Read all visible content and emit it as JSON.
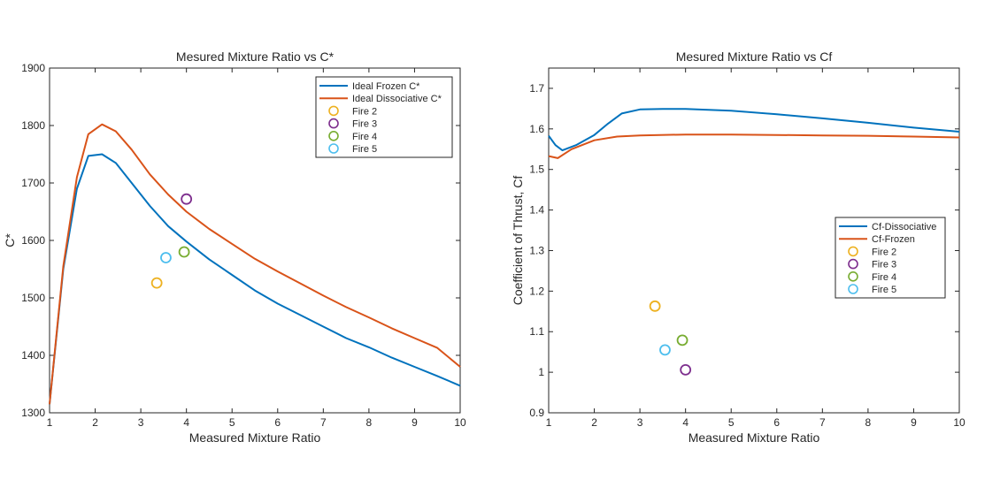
{
  "chart_data": [
    {
      "type": "line",
      "title": "Mesured Mixture Ratio vs C*",
      "xlabel": "Measured Mixture Ratio",
      "ylabel": "C*",
      "xlim": [
        1,
        10
      ],
      "ylim": [
        1300,
        1900
      ],
      "xticks": [
        1,
        2,
        3,
        4,
        5,
        6,
        7,
        8,
        9,
        10
      ],
      "yticks": [
        1300,
        1400,
        1500,
        1600,
        1700,
        1800,
        1900
      ],
      "grid": false,
      "legend_position": "top-right",
      "series": [
        {
          "name": "Ideal Frozen C*",
          "kind": "line",
          "color": "#0072BD",
          "x": [
            1.0,
            1.3,
            1.6,
            1.85,
            2.15,
            2.45,
            2.8,
            3.2,
            3.6,
            4.0,
            4.5,
            5.0,
            5.5,
            6.0,
            6.5,
            7.0,
            7.5,
            8.0,
            8.5,
            9.0,
            9.5,
            10.0
          ],
          "y": [
            1315,
            1550,
            1690,
            1747,
            1750,
            1735,
            1700,
            1660,
            1625,
            1598,
            1567,
            1540,
            1513,
            1490,
            1470,
            1450,
            1430,
            1414,
            1396,
            1380,
            1364,
            1347
          ]
        },
        {
          "name": "Ideal Dissociative C*",
          "kind": "line",
          "color": "#D95319",
          "x": [
            1.0,
            1.3,
            1.6,
            1.85,
            2.15,
            2.45,
            2.8,
            3.2,
            3.6,
            4.0,
            4.5,
            5.0,
            5.5,
            6.0,
            6.5,
            7.0,
            7.5,
            8.0,
            8.5,
            9.0,
            9.5,
            10.0
          ],
          "y": [
            1315,
            1555,
            1710,
            1785,
            1802,
            1790,
            1758,
            1715,
            1680,
            1650,
            1620,
            1594,
            1568,
            1546,
            1525,
            1504,
            1484,
            1466,
            1447,
            1430,
            1413,
            1380
          ]
        },
        {
          "name": "Fire 2",
          "kind": "marker",
          "color": "#EDB120",
          "x": [
            3.35
          ],
          "y": [
            1526
          ]
        },
        {
          "name": "Fire 3",
          "kind": "marker",
          "color": "#7E2F8E",
          "x": [
            4.0
          ],
          "y": [
            1672
          ]
        },
        {
          "name": "Fire 4",
          "kind": "marker",
          "color": "#77AC30",
          "x": [
            3.95
          ],
          "y": [
            1580
          ]
        },
        {
          "name": "Fire 5",
          "kind": "marker",
          "color": "#4DBEEE",
          "x": [
            3.55
          ],
          "y": [
            1570
          ]
        }
      ]
    },
    {
      "type": "line",
      "title": "Mesured Mixture Ratio vs Cf",
      "xlabel": "Measured Mixture Ratio",
      "ylabel": "Coefficient of Thrust, Cf",
      "xlim": [
        1,
        10
      ],
      "ylim": [
        0.9,
        1.75
      ],
      "xticks": [
        1,
        2,
        3,
        4,
        5,
        6,
        7,
        8,
        9,
        10
      ],
      "yticks": [
        0.9,
        1,
        1.1,
        1.2,
        1.3,
        1.4,
        1.5,
        1.6,
        1.7
      ],
      "grid": false,
      "legend_position": "center-right",
      "series": [
        {
          "name": "Cf-Dissociative",
          "kind": "line",
          "color": "#0072BD",
          "x": [
            1.0,
            1.15,
            1.3,
            1.6,
            2.0,
            2.3,
            2.6,
            3.0,
            3.5,
            4.0,
            5.0,
            6.0,
            7.0,
            8.0,
            9.0,
            10.0
          ],
          "y": [
            1.583,
            1.56,
            1.547,
            1.56,
            1.585,
            1.613,
            1.638,
            1.648,
            1.649,
            1.649,
            1.645,
            1.636,
            1.626,
            1.615,
            1.603,
            1.593
          ]
        },
        {
          "name": "Cf-Frozen",
          "kind": "line",
          "color": "#D95319",
          "x": [
            1.0,
            1.2,
            1.5,
            2.0,
            2.5,
            3.0,
            4.0,
            5.0,
            6.0,
            7.0,
            8.0,
            9.0,
            10.0
          ],
          "y": [
            1.533,
            1.528,
            1.55,
            1.572,
            1.581,
            1.584,
            1.586,
            1.586,
            1.585,
            1.584,
            1.583,
            1.581,
            1.579
          ]
        },
        {
          "name": "Fire 2",
          "kind": "marker",
          "color": "#EDB120",
          "x": [
            3.33
          ],
          "y": [
            1.163
          ]
        },
        {
          "name": "Fire 3",
          "kind": "marker",
          "color": "#7E2F8E",
          "x": [
            4.0
          ],
          "y": [
            1.006
          ]
        },
        {
          "name": "Fire 4",
          "kind": "marker",
          "color": "#77AC30",
          "x": [
            3.93
          ],
          "y": [
            1.079
          ]
        },
        {
          "name": "Fire 5",
          "kind": "marker",
          "color": "#4DBEEE",
          "x": [
            3.55
          ],
          "y": [
            1.055
          ]
        }
      ]
    }
  ]
}
